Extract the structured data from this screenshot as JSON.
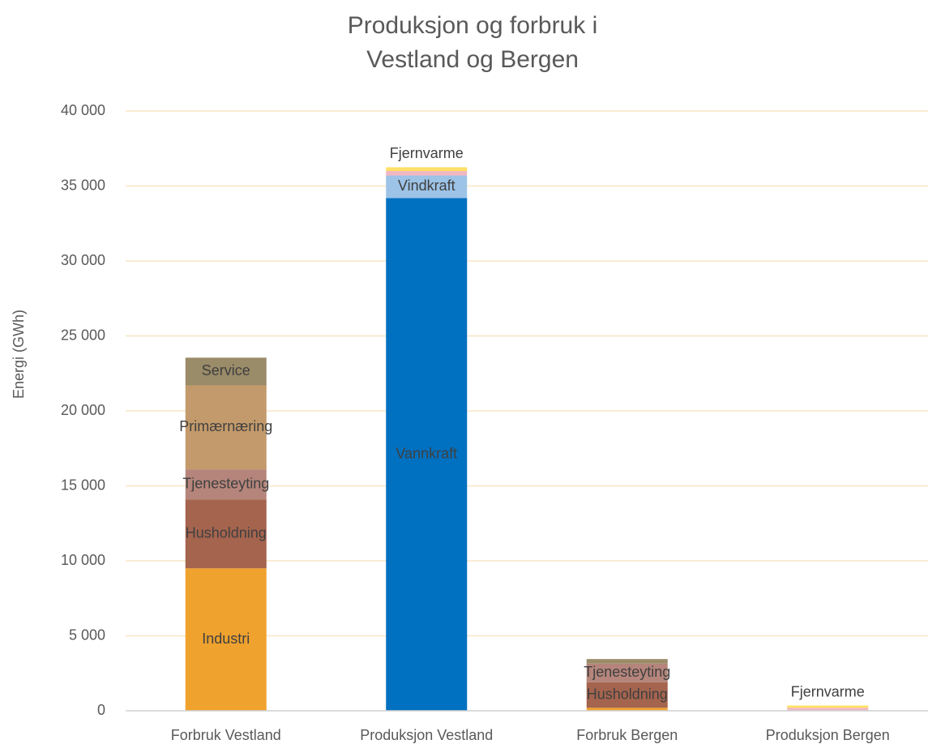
{
  "chart_data": {
    "type": "stacked-bar",
    "title": [
      "Produksjon og forbruk i",
      "Vestland  og Bergen"
    ],
    "y_label": "Energi (GWh)",
    "categories": [
      "Forbruk Vestland",
      "Produksjon Vestland",
      "Forbruk Bergen",
      "Produksjon Bergen"
    ],
    "series": [
      {
        "name": "Industri",
        "color": "#f0a22e",
        "values": [
          9500,
          null,
          200,
          null
        ]
      },
      {
        "name": "Husholdning",
        "color": "#a5644e",
        "values": [
          4600,
          null,
          1700,
          null
        ]
      },
      {
        "name": "Tjenesteyting",
        "color": "#b5857b",
        "values": [
          2000,
          null,
          1250,
          null
        ]
      },
      {
        "name": "Primærnæring",
        "color": "#c39a6b",
        "values": [
          5600,
          null,
          null,
          null
        ]
      },
      {
        "name": "Service",
        "color": "#9a8b69",
        "values": [
          1850,
          null,
          300,
          null
        ]
      },
      {
        "name": "Vannkraft",
        "color": "#0070c0",
        "values": [
          null,
          34200,
          null,
          null
        ]
      },
      {
        "name": "Vindkraft",
        "color": "#9dc3e6",
        "values": [
          null,
          1500,
          null,
          null
        ]
      },
      {
        "name": null,
        "color": "#f1b7c3",
        "values": [
          null,
          300,
          null,
          200
        ]
      },
      {
        "name": "Fjernvarme",
        "color": "#ffe066",
        "values": [
          null,
          250,
          null,
          150
        ]
      }
    ],
    "ylim": [
      0,
      40000
    ],
    "yticks": [
      0,
      {
        "value": 5000,
        "label": "5 000"
      },
      {
        "value": 10000,
        "label": "10 000"
      },
      {
        "value": 15000,
        "label": "15 000"
      },
      {
        "value": 20000,
        "label": "20 000"
      },
      {
        "value": 25000,
        "label": "25 000"
      },
      {
        "value": 30000,
        "label": "30 000"
      },
      {
        "value": 35000,
        "label": "35 000"
      },
      {
        "value": 40000,
        "label": "40 000"
      }
    ],
    "grid": true
  }
}
